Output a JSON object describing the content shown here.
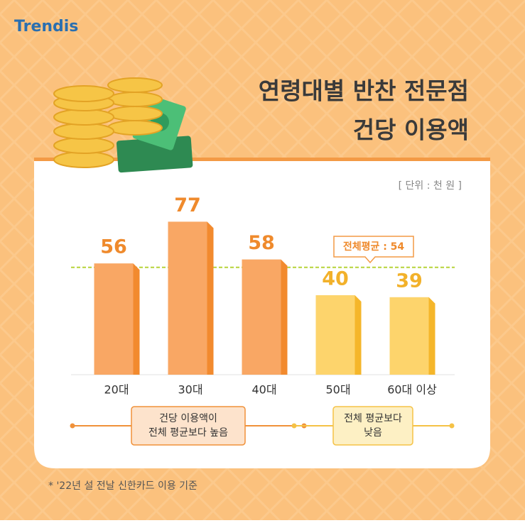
{
  "brand": "Trendis",
  "chart_data": {
    "type": "bar",
    "title": [
      "연령대별 반찬 전문점",
      "건당 이용액"
    ],
    "unit": "[ 단위 : 천 원 ]",
    "categories": [
      "20대",
      "30대",
      "40대",
      "50대",
      "60대 이상"
    ],
    "values": [
      56,
      77,
      58,
      40,
      39
    ],
    "colors": [
      "#f9a764",
      "#f9a764",
      "#f9a764",
      "#fdd46c",
      "#fdd46c"
    ],
    "side_colors": [
      "#f28a2e",
      "#f28a2e",
      "#f28a2e",
      "#f5b62a",
      "#f5b62a"
    ],
    "label_colors": [
      "#ef8a2c",
      "#ef8a2c",
      "#ef8a2c",
      "#f2b12a",
      "#f2b12a"
    ],
    "average": {
      "value": 54,
      "label": "전체평균 : 54",
      "color": "#b7d43a"
    },
    "groups": [
      {
        "lines": [
          "건당 이용액이",
          "전체 평균보다 높음"
        ],
        "from": 0,
        "to": 2,
        "color": "#f0913a",
        "fill": "#fde3cc"
      },
      {
        "lines": [
          "전체 평균보다",
          "낮음"
        ],
        "from": 3,
        "to": 4,
        "color": "#f5c246",
        "fill": "#fdf0c4"
      }
    ],
    "footnote": "* '22년 설 전날 신한카드 이용 기준"
  }
}
